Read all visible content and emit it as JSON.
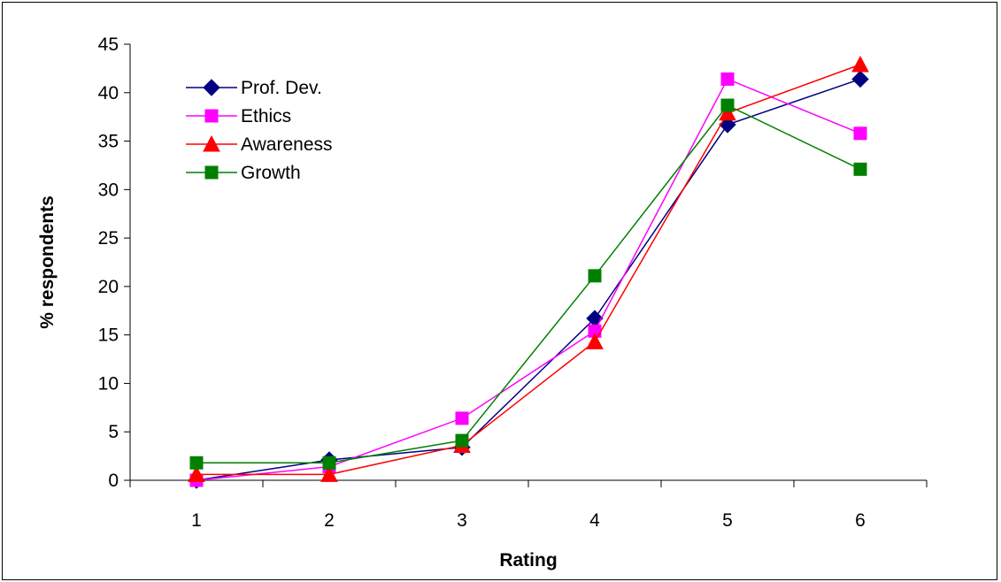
{
  "chart_data": {
    "type": "line",
    "x": [
      1,
      2,
      3,
      4,
      5,
      6
    ],
    "xlabel": "Rating",
    "ylabel": "% respondents",
    "ylim": [
      0,
      45
    ],
    "yticks": [
      "0",
      "5",
      "10",
      "15",
      "20",
      "25",
      "30",
      "35",
      "40",
      "45"
    ],
    "xticks": [
      "1",
      "2",
      "3",
      "4",
      "5",
      "6"
    ],
    "grid": false,
    "legend_position": "top-left",
    "series": [
      {
        "name": "Prof. Dev.",
        "marker": "diamond",
        "color": "#000080",
        "values": [
          0.0,
          2.1,
          3.4,
          16.7,
          36.7,
          41.4
        ]
      },
      {
        "name": "Ethics",
        "marker": "square",
        "color": "#ff00ff",
        "values": [
          0.0,
          1.4,
          6.4,
          15.4,
          41.4,
          35.8
        ]
      },
      {
        "name": "Awareness",
        "marker": "triangle",
        "color": "#ff0000",
        "values": [
          0.6,
          0.6,
          3.6,
          14.3,
          37.9,
          42.9
        ]
      },
      {
        "name": "Growth",
        "marker": "square",
        "color": "#008000",
        "values": [
          1.8,
          1.8,
          4.1,
          21.1,
          38.7,
          32.1
        ]
      }
    ]
  }
}
